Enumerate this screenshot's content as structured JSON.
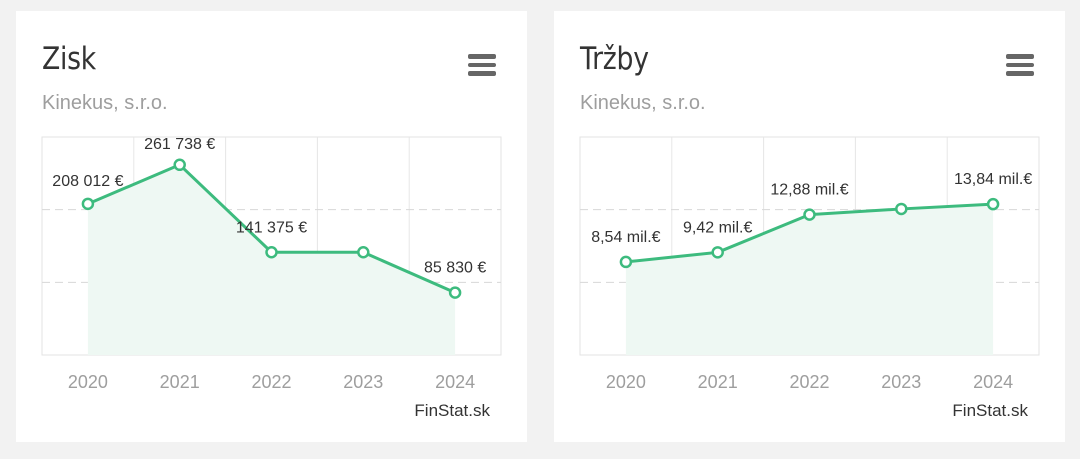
{
  "charts": [
    {
      "title": "Zisk",
      "subtitle": "Kinekus, s.r.o.",
      "credit": "FinStat.sk",
      "chart_data": {
        "type": "area",
        "title": "Zisk",
        "subtitle": "Kinekus, s.r.o.",
        "categories": [
          "2020",
          "2021",
          "2022",
          "2023",
          "2024"
        ],
        "values": [
          208012,
          261738,
          141375,
          141375,
          85830
        ],
        "data_labels": [
          "208 012 €",
          "261 738 €",
          "141 375 €",
          "",
          "85 830 €"
        ],
        "ylim": [
          0,
          300000
        ],
        "grid": true,
        "legend": "none",
        "color": "#3dbb7e"
      }
    },
    {
      "title": "Tržby",
      "subtitle": "Kinekus, s.r.o.",
      "credit": "FinStat.sk",
      "chart_data": {
        "type": "area",
        "title": "Tržby",
        "subtitle": "Kinekus, s.r.o.",
        "categories": [
          "2020",
          "2021",
          "2022",
          "2023",
          "2024"
        ],
        "values": [
          8.54,
          9.42,
          12.88,
          13.4,
          13.84
        ],
        "data_labels": [
          "8,54 mil.€",
          "9,42 mil.€",
          "12,88 mil.€",
          "",
          "13,84 mil.€"
        ],
        "ylim": [
          0,
          20
        ],
        "grid": true,
        "legend": "none",
        "color": "#3dbb7e"
      }
    }
  ]
}
